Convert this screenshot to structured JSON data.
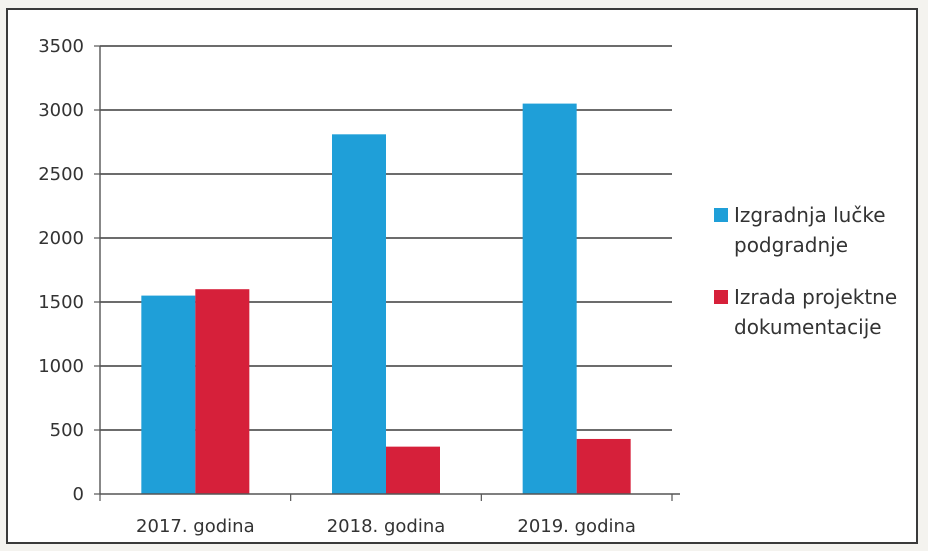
{
  "chart_data": {
    "type": "bar",
    "title": "",
    "xlabel": "",
    "ylabel": "",
    "categories": [
      "2017. godina",
      "2018. godina",
      "2019. godina"
    ],
    "series": [
      {
        "name": "Izgradnja lučke podgradnje",
        "color": "#1f9fd8",
        "values": [
          1550,
          2810,
          3050
        ]
      },
      {
        "name": "Izrada projektne dokumentacije",
        "color": "#d6203a",
        "values": [
          1600,
          370,
          430
        ]
      }
    ],
    "ylim": [
      0,
      3500
    ],
    "yticks": [
      0,
      500,
      1000,
      1500,
      2000,
      2500,
      3000,
      3500
    ],
    "grid": true,
    "legend": "right",
    "legend_lines": [
      [
        "Izgradnja lučke",
        "podgradnje"
      ],
      [
        "Izrada projektne",
        "dokumentacije"
      ]
    ]
  }
}
